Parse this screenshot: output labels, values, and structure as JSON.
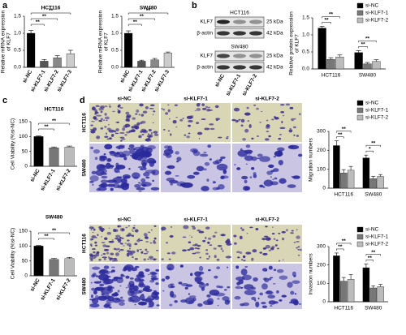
{
  "panel_labels": [
    "a",
    "b",
    "c",
    "d"
  ],
  "blot": {
    "cell_lines": [
      "HCT116",
      "SW480"
    ],
    "rows": [
      "KLF7",
      "β-actin"
    ],
    "sizes": [
      "25 kDa",
      "42 kDa"
    ],
    "lanes": [
      "si-NC",
      "si-KLF7-1",
      "si-KLF7-2"
    ]
  },
  "micrographs": {
    "columns": [
      "si-NC",
      "si-KLF7-1",
      "si-KLF7-2"
    ],
    "rows": [
      "HCT116",
      "SW480"
    ]
  },
  "chart_data": [
    {
      "type": "bar",
      "title": "HCT116",
      "ylabel": [
        "Relative mRNA expression",
        "of KLF7"
      ],
      "categories": [
        "si-NC",
        "si-KLF7-1",
        "si-KLF7-2",
        "si-KLF7-3"
      ],
      "values": [
        1.0,
        0.18,
        0.28,
        0.4
      ],
      "errors": [
        0.08,
        0.05,
        0.06,
        0.1
      ],
      "colors": [
        "#000000",
        "#555555",
        "#888888",
        "#cccccc"
      ],
      "ylim": [
        0,
        1.5
      ],
      "yticks": [
        {
          "value": 0,
          "label": "0.0"
        },
        {
          "value": 0.5,
          "label": "0.5"
        },
        {
          "value": 1,
          "label": "1.0"
        },
        {
          "value": 1.5,
          "label": "1.5"
        }
      ],
      "significance": [
        "**",
        "**",
        "**"
      ]
    },
    {
      "type": "bar",
      "title": "SW480",
      "ylabel": [
        "Relative mRNA expression",
        "of KLF7"
      ],
      "categories": [
        "si-NC",
        "si-KLF7-1",
        "si-KLF7-2",
        "si-KLF7-3"
      ],
      "values": [
        1.0,
        0.18,
        0.22,
        0.42
      ],
      "errors": [
        0.07,
        0.03,
        0.04,
        0.03
      ],
      "colors": [
        "#000000",
        "#555555",
        "#888888",
        "#cccccc"
      ],
      "ylim": [
        0,
        1.5
      ],
      "yticks": [
        {
          "value": 0,
          "label": "0.0"
        },
        {
          "value": 0.5,
          "label": "0.5"
        },
        {
          "value": 1,
          "label": "1.0"
        },
        {
          "value": 1.5,
          "label": "1.5"
        }
      ],
      "significance": [
        "**",
        "**",
        "**"
      ]
    },
    {
      "type": "bar",
      "ylabel": [
        "Relative protein expression",
        "of KLF7"
      ],
      "categories": [
        "HCT116",
        "SW480"
      ],
      "series": [
        {
          "name": "si-NC",
          "color": "#000000",
          "values": [
            1.2,
            0.48
          ],
          "errors": [
            0.05,
            0.06
          ]
        },
        {
          "name": "si-KLF7-1",
          "color": "#777777",
          "values": [
            0.28,
            0.15
          ],
          "errors": [
            0.05,
            0.04
          ]
        },
        {
          "name": "si-KLF7-2",
          "color": "#bbbbbb",
          "values": [
            0.35,
            0.22
          ],
          "errors": [
            0.06,
            0.05
          ]
        }
      ],
      "ylim": [
        0,
        1.5
      ],
      "yticks": [
        {
          "value": 0,
          "label": "0.0"
        },
        {
          "value": 0.5,
          "label": "0.5"
        },
        {
          "value": 1,
          "label": "1.0"
        },
        {
          "value": 1.5,
          "label": "1.5"
        }
      ],
      "legend": "upper right",
      "significance": [
        [
          "**",
          "**"
        ],
        [
          "**",
          "**"
        ]
      ]
    },
    {
      "type": "bar",
      "title": "HCT116",
      "ylabel": [
        "Cell Viability (%si-NC)"
      ],
      "categories": [
        "si-NC",
        "si-KLF7-1",
        "si-KLF7-2"
      ],
      "values": [
        100,
        62,
        65
      ],
      "errors": [
        2,
        3,
        3
      ],
      "colors": [
        "#000000",
        "#777777",
        "#bbbbbb"
      ],
      "ylim": [
        0,
        150
      ],
      "yticks": [
        0,
        50,
        100,
        150
      ],
      "significance": [
        "**",
        "**"
      ]
    },
    {
      "type": "bar",
      "title": "SW480",
      "ylabel": [
        "Cell Viability (%si-NC)"
      ],
      "categories": [
        "si-NC",
        "si-KLF7-1",
        "si-KLF7-2"
      ],
      "values": [
        100,
        55,
        58
      ],
      "errors": [
        2,
        3,
        4
      ],
      "colors": [
        "#000000",
        "#777777",
        "#bbbbbb"
      ],
      "ylim": [
        0,
        150
      ],
      "yticks": [
        0,
        50,
        100,
        150
      ],
      "significance": [
        "**",
        "**"
      ]
    },
    {
      "type": "bar",
      "ylabel": [
        "Migration numbers"
      ],
      "categories": [
        "HCT116",
        "SW480"
      ],
      "series": [
        {
          "name": "si-NC",
          "color": "#000000",
          "values": [
            225,
            160
          ],
          "errors": [
            25,
            15
          ]
        },
        {
          "name": "si-KLF7-1",
          "color": "#777777",
          "values": [
            80,
            50
          ],
          "errors": [
            18,
            12
          ]
        },
        {
          "name": "si-KLF7-2",
          "color": "#bbbbbb",
          "values": [
            95,
            62
          ],
          "errors": [
            20,
            10
          ]
        }
      ],
      "ylim": [
        0,
        300
      ],
      "yticks": [
        0,
        100,
        200,
        300
      ],
      "legend": "upper right",
      "significance": [
        [
          "**",
          "**"
        ],
        [
          "*",
          "**"
        ]
      ]
    },
    {
      "type": "bar",
      "ylabel": [
        "Invasion numbers"
      ],
      "categories": [
        "HCT116",
        "SW480"
      ],
      "series": [
        {
          "name": "si-NC",
          "color": "#000000",
          "values": [
            250,
            185
          ],
          "errors": [
            15,
            20
          ]
        },
        {
          "name": "si-KLF7-1",
          "color": "#777777",
          "values": [
            112,
            75
          ],
          "errors": [
            20,
            12
          ]
        },
        {
          "name": "si-KLF7-2",
          "color": "#bbbbbb",
          "values": [
            122,
            82
          ],
          "errors": [
            25,
            12
          ]
        }
      ],
      "ylim": [
        0,
        300
      ],
      "yticks": [
        0,
        100,
        200,
        300
      ],
      "legend": "upper right",
      "significance": [
        [
          "**",
          "**"
        ],
        [
          "**",
          "**"
        ]
      ]
    }
  ]
}
